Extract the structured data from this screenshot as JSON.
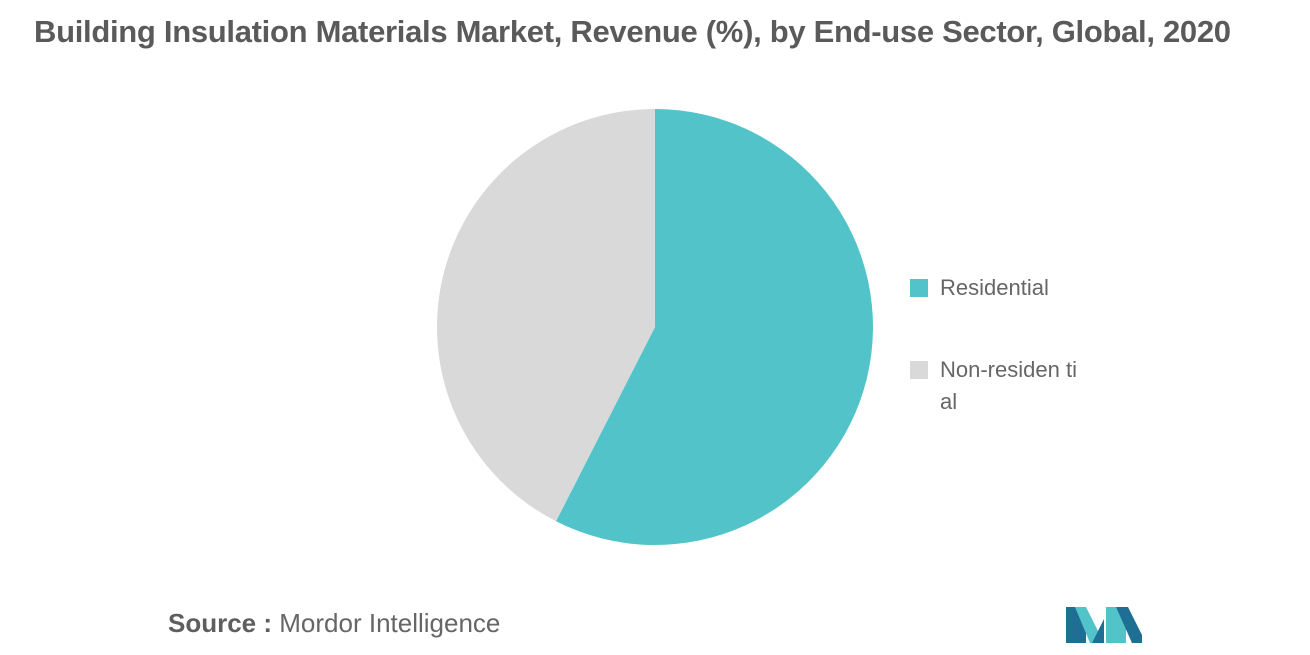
{
  "chart_data": {
    "type": "pie",
    "title": "Building Insulation Materials Market, Revenue (%), by End-use Sector, Global, 2020",
    "slices": [
      {
        "label": "Residential",
        "value": 57.5,
        "color": "#52c4c9"
      },
      {
        "label": "Non-residential",
        "value": 42.5,
        "color": "#d9d9d9"
      }
    ],
    "legend_labels": [
      "Residential",
      "Non-residen tial"
    ],
    "legend_position": "right"
  },
  "source": {
    "prefix": "Source :",
    "name": "Mordor Intelligence"
  },
  "logo": {
    "icon": "mordor-intelligence-logo-icon",
    "colors": [
      "#1f6f95",
      "#52c4c9"
    ]
  }
}
